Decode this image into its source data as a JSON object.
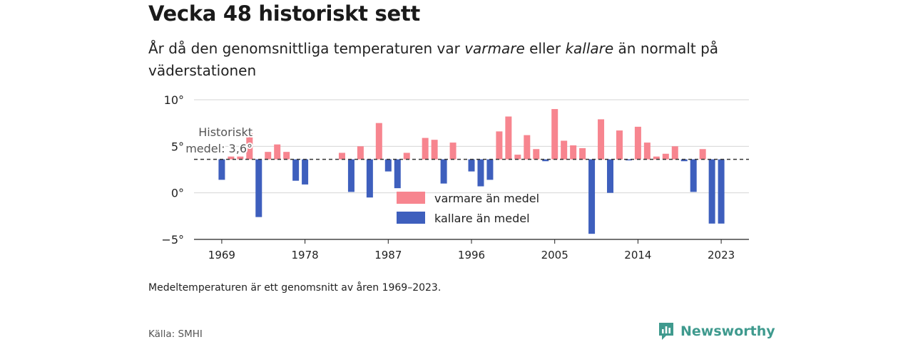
{
  "title": "Vecka 48 historiskt sett",
  "subtitle": {
    "part1": "År då den genomsnittliga temperaturen var ",
    "warm_word": "varmare",
    "part2": " eller ",
    "cold_word": "kallare",
    "part3": " än normalt på väderstationen"
  },
  "footnote": "Medeltemperaturen är ett genomsnitt av åren 1969–2023.",
  "source": "Källa: SMHI",
  "brand": {
    "name": "Newsworthy",
    "icon": "newsworthy-chart-icon",
    "color": "#3f9a8e"
  },
  "chart_data": {
    "type": "bar",
    "baseline": 3.6,
    "baseline_label": [
      "Historiskt",
      "medel: 3,6°"
    ],
    "x_ticks": [
      1969,
      1978,
      1987,
      1996,
      2005,
      2014,
      2023
    ],
    "y_ticks": [
      10,
      5,
      0,
      -5
    ],
    "y_tick_labels": [
      "10°",
      "5°",
      "0°",
      "−5°"
    ],
    "ylim": [
      -5,
      10
    ],
    "xlim": [
      1966,
      2026
    ],
    "colors": {
      "warm": "#f7858f",
      "cold": "#3e5fbd"
    },
    "legend": {
      "warm": "varmare än medel",
      "cold": "kallare än medel"
    },
    "years": [
      1969,
      1970,
      1971,
      1972,
      1973,
      1974,
      1975,
      1976,
      1977,
      1978,
      1982,
      1983,
      1984,
      1985,
      1986,
      1987,
      1988,
      1989,
      1991,
      1992,
      1993,
      1994,
      1996,
      1997,
      1998,
      1999,
      2000,
      2001,
      2002,
      2003,
      2004,
      2005,
      2006,
      2007,
      2008,
      2009,
      2010,
      2011,
      2012,
      2013,
      2014,
      2015,
      2016,
      2017,
      2018,
      2019,
      2020,
      2021,
      2022,
      2023
    ],
    "values": [
      1.4,
      3.9,
      3.9,
      6.4,
      -2.6,
      4.4,
      5.2,
      4.4,
      1.3,
      0.9,
      4.3,
      0.1,
      5.0,
      -0.5,
      7.5,
      2.3,
      0.5,
      4.3,
      5.9,
      5.7,
      1.0,
      5.4,
      2.3,
      0.7,
      1.4,
      6.6,
      8.2,
      4.1,
      6.2,
      4.7,
      3.4,
      9.0,
      5.6,
      5.1,
      4.8,
      -4.4,
      7.9,
      0.0,
      6.7,
      3.5,
      7.1,
      5.4,
      3.9,
      4.2,
      5.0,
      3.4,
      0.1,
      4.7,
      -3.3,
      -3.3
    ]
  }
}
